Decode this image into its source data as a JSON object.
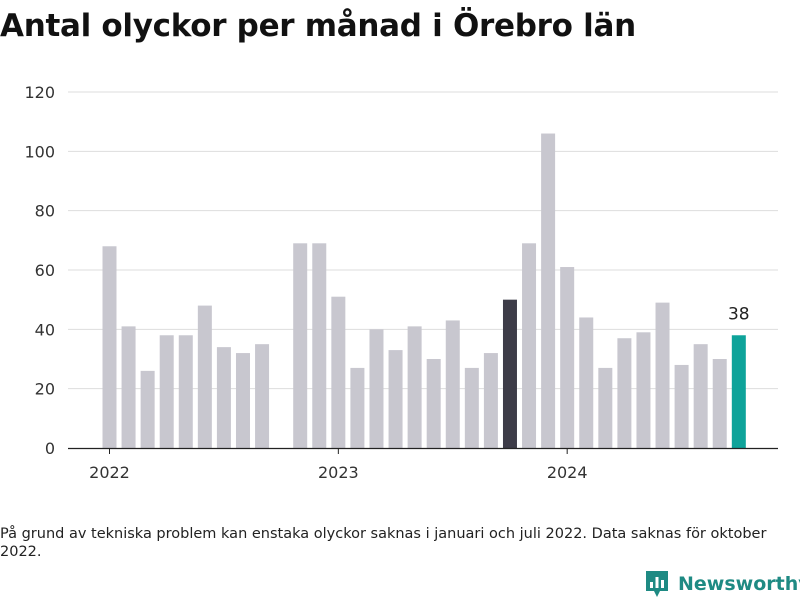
{
  "title": "Antal olyckor per månad i Örebro län",
  "note": "På grund av tekniska problem kan enstaka olyckor saknas i januari och juli 2022. Data saknas för oktober 2022.",
  "brand": "Newsworthy",
  "colors": {
    "bar": "#c8c7cf",
    "highlight_previous": "#3d3c48",
    "highlight_latest": "#0ea39a",
    "grid": "#dddddd",
    "brand": "#1e8a83"
  },
  "chart_data": {
    "type": "bar",
    "x": [
      "2022-01",
      "2022-02",
      "2022-03",
      "2022-04",
      "2022-05",
      "2022-06",
      "2022-07",
      "2022-08",
      "2022-09",
      "2022-10",
      "2022-11",
      "2022-12",
      "2023-01",
      "2023-02",
      "2023-03",
      "2023-04",
      "2023-05",
      "2023-06",
      "2023-07",
      "2023-08",
      "2023-09",
      "2023-10",
      "2023-11",
      "2023-12",
      "2024-01",
      "2024-02",
      "2024-03",
      "2024-04",
      "2024-05",
      "2024-06",
      "2024-07",
      "2024-08",
      "2024-09",
      "2024-10"
    ],
    "values": [
      68,
      41,
      26,
      38,
      38,
      48,
      34,
      32,
      35,
      null,
      69,
      69,
      51,
      27,
      40,
      33,
      41,
      30,
      43,
      27,
      32,
      50,
      69,
      106,
      61,
      44,
      27,
      37,
      39,
      49,
      28,
      35,
      30,
      38
    ],
    "highlight_previous_index": 21,
    "highlight_latest_index": 33,
    "data_labels": [
      {
        "index": 33,
        "text": "38"
      }
    ],
    "yticks": [
      0,
      20,
      40,
      60,
      80,
      100,
      120
    ],
    "xticks": [
      {
        "index": 0,
        "label": "2022"
      },
      {
        "index": 12,
        "label": "2023"
      },
      {
        "index": 24,
        "label": "2024"
      }
    ],
    "ylim": [
      0,
      120
    ],
    "grid": true,
    "legend": "none"
  }
}
